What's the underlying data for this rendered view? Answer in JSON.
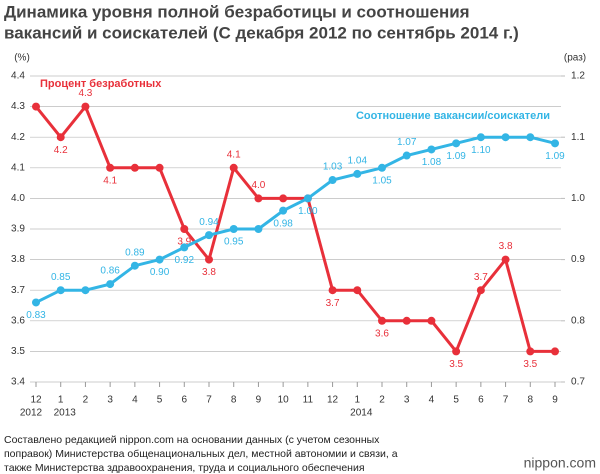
{
  "chart_data": {
    "type": "line",
    "title": "Динамика уровня полной безработицы и соотношения",
    "subtitle": "вакансий и соискателей (С декабря 2012 по сентябрь 2014 г.)",
    "y_label": "(%)",
    "y2_label": "(раз)",
    "categories": [
      "12",
      "1",
      "2",
      "3",
      "4",
      "5",
      "6",
      "7",
      "8",
      "9",
      "10",
      "11",
      "12",
      "1",
      "2",
      "3",
      "4",
      "5",
      "6",
      "7",
      "8",
      "9"
    ],
    "category_years": [
      "2012",
      "2013",
      null,
      null,
      null,
      null,
      null,
      null,
      null,
      null,
      null,
      null,
      null,
      "2014",
      null,
      null,
      null,
      null,
      null,
      null,
      null,
      null
    ],
    "ylim": [
      3.4,
      4.4
    ],
    "yticks": [
      3.4,
      3.5,
      3.6,
      3.7,
      3.8,
      3.9,
      {
        "value": 4.0,
        "label": "4.0"
      },
      4.1,
      4.2,
      4.3,
      4.4
    ],
    "y2lim": [
      0.7,
      1.2
    ],
    "y2ticks": [
      0.7,
      0.8,
      0.9,
      {
        "value": 1.0,
        "label": "1.0"
      },
      1.1,
      1.2
    ],
    "grid": true,
    "series": [
      {
        "name": "Процент безработных",
        "color": "#e8303a",
        "values": [
          4.3,
          4.2,
          4.3,
          4.1,
          4.1,
          4.1,
          3.9,
          3.8,
          4.1,
          4.0,
          4.0,
          4.0,
          3.7,
          3.7,
          3.6,
          3.6,
          3.6,
          3.5,
          3.7,
          3.8,
          3.5,
          3.5
        ],
        "value_labels": [
          null,
          "4.2",
          "4.3",
          "4.1",
          null,
          null,
          "3.9",
          "3.8",
          "4.1",
          "4.0",
          null,
          null,
          "3.7",
          null,
          "3.6",
          null,
          null,
          "3.5",
          "3.7",
          "3.8",
          "3.5",
          null
        ]
      },
      {
        "name": "Соотношение вакансии/соискатели",
        "color": "#33b5e5",
        "axis": "y2",
        "values": [
          0.83,
          0.85,
          0.85,
          0.86,
          0.89,
          0.9,
          0.92,
          0.94,
          0.95,
          0.95,
          0.98,
          1.0,
          1.03,
          1.04,
          1.05,
          1.07,
          1.08,
          1.09,
          1.1,
          1.1,
          1.1,
          1.09
        ],
        "value_labels": [
          "0.83",
          "0.85",
          null,
          "0.86",
          "0.89",
          "0.90",
          "0.92",
          "0.94",
          "0.95",
          null,
          "0.98",
          "1.00",
          "1.03",
          "1.04",
          "1.05",
          "1.07",
          "1.08",
          "1.09",
          "1.10",
          null,
          null,
          "1.09"
        ]
      }
    ],
    "source": [
      "Составлено редакцией nippon.com на основании данных (с учетом сезонных",
      "поправок) Министерства общенациональных дел, местной автономии и связи, а",
      "также Министерства здравоохранения, труда и социального обеспечения"
    ],
    "logo": "nippon.com"
  }
}
